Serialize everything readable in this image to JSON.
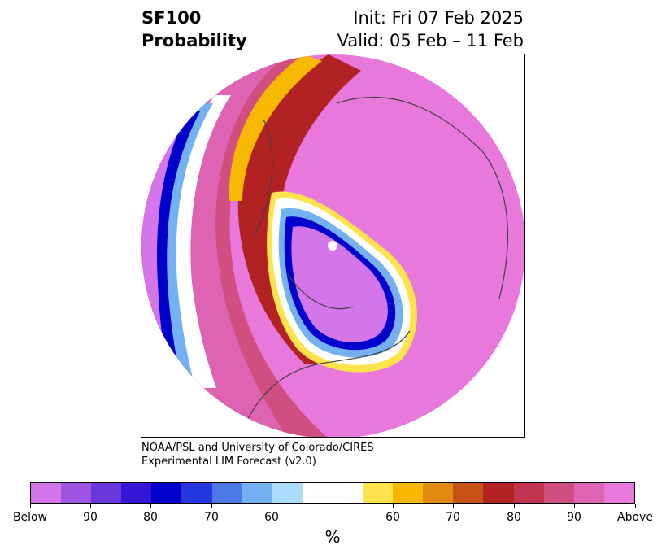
{
  "header": {
    "product": "SF100",
    "subtitle": "Probability",
    "init": "Init: Fri 07 Feb 2025",
    "valid": "Valid: 05 Feb – 11 Feb"
  },
  "credit": {
    "line1": "NOAA/PSL and University of Colorado/CIRES",
    "line2": "Experimental LIM Forecast (v2.0)"
  },
  "colorbar": {
    "unit": "%",
    "colors": [
      "#d476ea",
      "#9e56e2",
      "#6a38da",
      "#3417d6",
      "#0000cc",
      "#2437dc",
      "#4d79e8",
      "#74b1f2",
      "#abdcfa",
      "#ffffff",
      "#ffffff",
      "#ffe34c",
      "#f6b800",
      "#e08a10",
      "#c55217",
      "#b22222",
      "#c23350",
      "#d04f80",
      "#de63b2",
      "#e878dc"
    ],
    "ticks": [
      "Below",
      "90",
      "80",
      "70",
      "60",
      "60",
      "70",
      "80",
      "90",
      "Above"
    ]
  },
  "map": {
    "projection": "north-polar-stereographic",
    "background_color": "#e878dc",
    "coastline_color": "#404040"
  }
}
